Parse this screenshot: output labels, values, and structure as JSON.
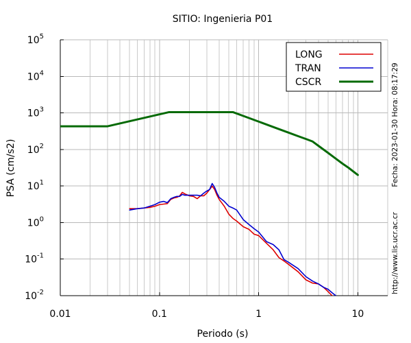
{
  "chart_data": {
    "type": "line",
    "title": "SITIO: Ingenieria P01",
    "xlabel": "Periodo (s)",
    "ylabel": "PSA (cm/s2)",
    "xscale": "log",
    "yscale": "log",
    "xlim": [
      0.01,
      20
    ],
    "ylim": [
      0.01,
      100000
    ],
    "grid": true,
    "legend": {
      "position": "top-right"
    },
    "xticks": [
      {
        "value": 0.01,
        "label": "0.01"
      },
      {
        "value": 0.1,
        "label": "0.1"
      },
      {
        "value": 1,
        "label": "1"
      },
      {
        "value": 10,
        "label": "10"
      }
    ],
    "yticks": [
      {
        "value": 100000,
        "base": "10",
        "exp": "5"
      },
      {
        "value": 10000,
        "base": "10",
        "exp": "4"
      },
      {
        "value": 1000,
        "base": "10",
        "exp": "3"
      },
      {
        "value": 100,
        "base": "10",
        "exp": "2"
      },
      {
        "value": 10,
        "base": "10",
        "exp": "1"
      },
      {
        "value": 1,
        "base": "10",
        "exp": "0"
      },
      {
        "value": 0.1,
        "base": "10",
        "exp": "-1"
      },
      {
        "value": 0.01,
        "base": "10",
        "exp": "-2"
      }
    ],
    "series": [
      {
        "name": "LONG",
        "color": "#dd0000",
        "x": [
          0.05,
          0.06,
          0.07,
          0.08,
          0.09,
          0.1,
          0.11,
          0.12,
          0.13,
          0.14,
          0.15,
          0.16,
          0.17,
          0.18,
          0.2,
          0.22,
          0.24,
          0.26,
          0.28,
          0.3,
          0.32,
          0.34,
          0.36,
          0.38,
          0.4,
          0.45,
          0.5,
          0.55,
          0.6,
          0.7,
          0.8,
          0.9,
          1.0,
          1.2,
          1.4,
          1.6,
          1.8,
          2.0,
          2.5,
          3.0,
          3.5,
          4.0,
          4.5,
          5.0,
          5.5
        ],
        "y": [
          2.4,
          2.4,
          2.5,
          2.6,
          2.8,
          3.1,
          3.2,
          3.3,
          4.3,
          4.7,
          4.9,
          5.4,
          6.7,
          6.1,
          5.4,
          5.2,
          4.5,
          5.4,
          5.4,
          6.4,
          8.0,
          9.9,
          8.0,
          5.6,
          4.3,
          2.8,
          1.7,
          1.3,
          1.1,
          0.77,
          0.65,
          0.48,
          0.44,
          0.27,
          0.18,
          0.11,
          0.089,
          0.072,
          0.045,
          0.027,
          0.022,
          0.021,
          0.017,
          0.013,
          0.01
        ]
      },
      {
        "name": "TRAN",
        "color": "#0000d0",
        "x": [
          0.05,
          0.06,
          0.07,
          0.08,
          0.09,
          0.1,
          0.11,
          0.12,
          0.13,
          0.14,
          0.15,
          0.16,
          0.17,
          0.18,
          0.2,
          0.22,
          0.24,
          0.26,
          0.28,
          0.3,
          0.32,
          0.34,
          0.36,
          0.38,
          0.4,
          0.45,
          0.5,
          0.55,
          0.6,
          0.7,
          0.8,
          0.9,
          1.0,
          1.2,
          1.4,
          1.6,
          1.8,
          2.0,
          2.5,
          3.0,
          3.5,
          4.0,
          4.5,
          5.0,
          5.5,
          6.0
        ],
        "y": [
          2.2,
          2.4,
          2.5,
          2.8,
          3.1,
          3.6,
          3.8,
          3.5,
          4.5,
          4.9,
          5.2,
          5.2,
          5.9,
          5.6,
          5.6,
          5.6,
          5.6,
          5.4,
          6.4,
          7.3,
          8.0,
          11.7,
          9.1,
          6.4,
          4.9,
          3.8,
          2.8,
          2.5,
          2.2,
          1.2,
          0.88,
          0.68,
          0.55,
          0.3,
          0.25,
          0.18,
          0.097,
          0.082,
          0.055,
          0.033,
          0.025,
          0.021,
          0.017,
          0.015,
          0.012,
          0.01
        ]
      },
      {
        "name": "CSCR",
        "color": "#066a06",
        "x": [
          0.01,
          0.03,
          0.125,
          0.55,
          0.7,
          1.0,
          1.5,
          2.0,
          2.5,
          3.0,
          3.5,
          4.0,
          5.0,
          6.0,
          7.0,
          8.0,
          10.0
        ],
        "y": [
          430,
          430,
          1050,
          1050,
          825,
          578,
          385,
          289,
          231,
          193,
          165,
          126,
          81,
          56,
          41,
          32,
          20
        ]
      }
    ]
  },
  "annotations": {
    "datetime": "Fecha: 2023-01-30 Hora: 08:17:29",
    "url": "http://www.lis.ucr.ac.cr"
  }
}
